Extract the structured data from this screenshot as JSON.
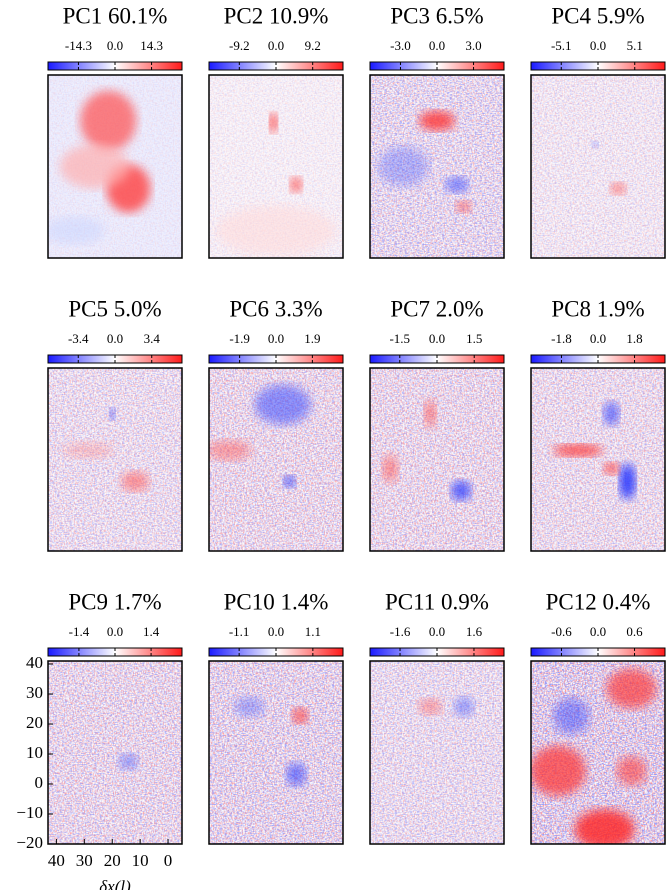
{
  "chart_data": [
    {
      "type": "heatmap",
      "title": "PC1 60.1%",
      "clim": [
        -26.2,
        26.2
      ],
      "cticks": [
        -14.3,
        {
          "value": 0,
          "label": "0.0"
        },
        14.3
      ]
    },
    {
      "type": "heatmap",
      "title": "PC2 10.9%",
      "clim": [
        -16.8,
        16.8
      ],
      "cticks": [
        -9.2,
        {
          "value": 0,
          "label": "0.0"
        },
        9.2
      ]
    },
    {
      "type": "heatmap",
      "title": "PC3 6.5%",
      "clim": [
        -5.5,
        5.5
      ],
      "cticks": [
        {
          "value": -3,
          "label": "-3.0"
        },
        {
          "value": 0,
          "label": "0.0"
        },
        {
          "value": 3,
          "label": "3.0"
        }
      ]
    },
    {
      "type": "heatmap",
      "title": "PC4 5.9%",
      "clim": [
        -9.3,
        9.3
      ],
      "cticks": [
        -5.1,
        {
          "value": 0,
          "label": "0.0"
        },
        5.1
      ]
    },
    {
      "type": "heatmap",
      "title": "PC5 5.0%",
      "clim": [
        -6.2,
        6.2
      ],
      "cticks": [
        -3.4,
        {
          "value": 0,
          "label": "0.0"
        },
        3.4
      ]
    },
    {
      "type": "heatmap",
      "title": "PC6 3.3%",
      "clim": [
        -3.5,
        3.5
      ],
      "cticks": [
        -1.9,
        {
          "value": 0,
          "label": "0.0"
        },
        1.9
      ]
    },
    {
      "type": "heatmap",
      "title": "PC7 2.0%",
      "clim": [
        -2.7,
        2.7
      ],
      "cticks": [
        -1.5,
        {
          "value": 0,
          "label": "0.0"
        },
        1.5
      ]
    },
    {
      "type": "heatmap",
      "title": "PC8 1.9%",
      "clim": [
        -3.3,
        3.3
      ],
      "cticks": [
        -1.8,
        {
          "value": 0,
          "label": "0.0"
        },
        1.8
      ]
    },
    {
      "type": "heatmap",
      "title": "PC9 1.7%",
      "clim": [
        -2.6,
        2.6
      ],
      "cticks": [
        -1.4,
        {
          "value": 0,
          "label": "0.0"
        },
        1.4
      ],
      "xlim": [
        43,
        -5
      ],
      "xticks": [
        40,
        30,
        20,
        10,
        0
      ],
      "ylim": [
        -20,
        41
      ],
      "yticks": [
        {
          "value": -20,
          "label": "−20"
        },
        {
          "value": -10,
          "label": "−10"
        },
        0,
        10,
        20,
        30,
        40
      ],
      "xlabel": "δx(l)"
    },
    {
      "type": "heatmap",
      "title": "PC10 1.4%",
      "clim": [
        -2.0,
        2.0
      ],
      "cticks": [
        -1.1,
        {
          "value": 0,
          "label": "0.0"
        },
        1.1
      ]
    },
    {
      "type": "heatmap",
      "title": "PC11 0.9%",
      "clim": [
        -2.9,
        2.9
      ],
      "cticks": [
        -1.6,
        {
          "value": 0,
          "label": "0.0"
        },
        1.6
      ]
    },
    {
      "type": "heatmap",
      "title": "PC12 0.4%",
      "clim": [
        -1.1,
        1.1
      ],
      "cticks": [
        -0.6,
        {
          "value": 0,
          "label": "0.0"
        },
        0.6
      ]
    }
  ]
}
